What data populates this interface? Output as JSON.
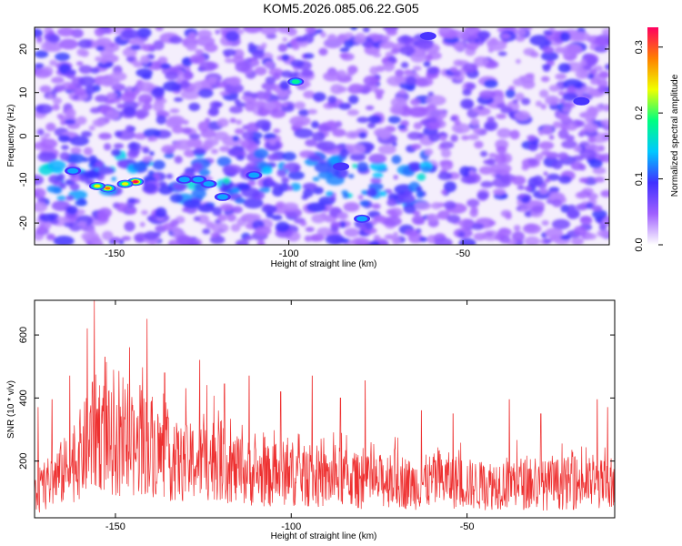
{
  "title": "KOM5.2026.085.06.22.G05",
  "colors": {
    "background": "#ffffff",
    "frame": "#000000",
    "snr_line": "#ee3030",
    "spectrogram_floor": "#f4eefc"
  },
  "colorbar": {
    "label": "Normalized spectral amplitude",
    "range": [
      0.0,
      0.33
    ],
    "ticks": [
      {
        "value": 0.0,
        "label": "0.0"
      },
      {
        "value": 0.1,
        "label": "0.1"
      },
      {
        "value": 0.2,
        "label": "0.2"
      },
      {
        "value": 0.3,
        "label": "0.3"
      }
    ],
    "colormap": [
      "#ffffff",
      "#a060ff",
      "#4030ff",
      "#00c8ff",
      "#00ff80",
      "#f0ff00",
      "#ff8000",
      "#ff0060"
    ]
  },
  "chart_data": [
    {
      "type": "heatmap",
      "xlabel": "Height of straight line (km)",
      "ylabel": "Frequency (Hz)",
      "xlim": [
        -173,
        -8
      ],
      "ylim": [
        -25,
        25
      ],
      "xticks": [
        {
          "value": -150,
          "label": "-150"
        },
        {
          "value": -100,
          "label": "-100"
        },
        {
          "value": -50,
          "label": "-50"
        }
      ],
      "yticks": [
        {
          "value": -20,
          "label": "-20"
        },
        {
          "value": -10,
          "label": "-10"
        },
        {
          "value": 0,
          "label": "0"
        },
        {
          "value": 10,
          "label": "10"
        },
        {
          "value": 20,
          "label": "20"
        }
      ],
      "peaks": [
        {
          "x": -144,
          "y": -10.5,
          "value": 0.33
        },
        {
          "x": -152,
          "y": -12,
          "value": 0.3
        },
        {
          "x": -147,
          "y": -11,
          "value": 0.27
        },
        {
          "x": -155,
          "y": -11.5,
          "value": 0.24
        },
        {
          "x": -162,
          "y": -8,
          "value": 0.17
        },
        {
          "x": -130,
          "y": -10,
          "value": 0.15
        },
        {
          "x": -126,
          "y": -10,
          "value": 0.14
        },
        {
          "x": -123,
          "y": -11,
          "value": 0.13
        },
        {
          "x": -110,
          "y": -9,
          "value": 0.14
        },
        {
          "x": -98,
          "y": 12.5,
          "value": 0.2
        },
        {
          "x": -85,
          "y": -7,
          "value": 0.12
        },
        {
          "x": -79,
          "y": -19,
          "value": 0.14
        },
        {
          "x": -119,
          "y": -14,
          "value": 0.13
        },
        {
          "x": -16,
          "y": 8,
          "value": 0.1
        },
        {
          "x": -60,
          "y": 23,
          "value": 0.1
        }
      ],
      "band": {
        "x": [
          -170,
          -60
        ],
        "y": [
          -16,
          -4
        ],
        "level": 0.08
      }
    },
    {
      "type": "line",
      "xlabel": "Height of straight line (km)",
      "ylabel": "SNR (10 * v/v)",
      "xlim": [
        -173,
        -8
      ],
      "ylim": [
        20,
        710
      ],
      "xticks": [
        {
          "value": -150,
          "label": "-150"
        },
        {
          "value": -100,
          "label": "-100"
        },
        {
          "value": -50,
          "label": "-50"
        }
      ],
      "yticks": [
        {
          "value": 200,
          "label": "200"
        },
        {
          "value": 400,
          "label": "400"
        },
        {
          "value": 600,
          "label": "600"
        }
      ],
      "series": [
        {
          "x": [
            -173,
            -168,
            -163,
            -158,
            -155,
            -150,
            -145,
            -141,
            -136,
            -131,
            -126,
            -121,
            -116,
            -111,
            -106,
            -101,
            -96,
            -91,
            -86,
            -81,
            -76,
            -71,
            -66,
            -61,
            -56,
            -51,
            -46,
            -41,
            -36,
            -31,
            -26,
            -21,
            -16,
            -11,
            -8
          ],
          "y": [
            90,
            140,
            180,
            250,
            300,
            240,
            230,
            260,
            210,
            190,
            200,
            210,
            170,
            160,
            150,
            165,
            150,
            140,
            150,
            135,
            130,
            150,
            125,
            135,
            140,
            130,
            120,
            130,
            135,
            120,
            125,
            130,
            130,
            125,
            110
          ],
          "peaks": [
            {
              "x": -172,
              "y": 370
            },
            {
              "x": -168,
              "y": 395
            },
            {
              "x": -163,
              "y": 470
            },
            {
              "x": -158,
              "y": 620
            },
            {
              "x": -156,
              "y": 710
            },
            {
              "x": -153,
              "y": 530
            },
            {
              "x": -149,
              "y": 485
            },
            {
              "x": -146,
              "y": 560
            },
            {
              "x": -143,
              "y": 440
            },
            {
              "x": -141,
              "y": 650
            },
            {
              "x": -136,
              "y": 480
            },
            {
              "x": -130,
              "y": 430
            },
            {
              "x": -126,
              "y": 520
            },
            {
              "x": -124,
              "y": 440
            },
            {
              "x": -119,
              "y": 445
            },
            {
              "x": -112,
              "y": 470
            },
            {
              "x": -103,
              "y": 420
            },
            {
              "x": -94,
              "y": 470
            },
            {
              "x": -86,
              "y": 400
            },
            {
              "x": -79,
              "y": 455
            },
            {
              "x": -63,
              "y": 360
            },
            {
              "x": -54,
              "y": 350
            },
            {
              "x": -38,
              "y": 395
            },
            {
              "x": -29,
              "y": 350
            },
            {
              "x": -13,
              "y": 395
            },
            {
              "x": -10,
              "y": 370
            }
          ]
        }
      ]
    }
  ]
}
